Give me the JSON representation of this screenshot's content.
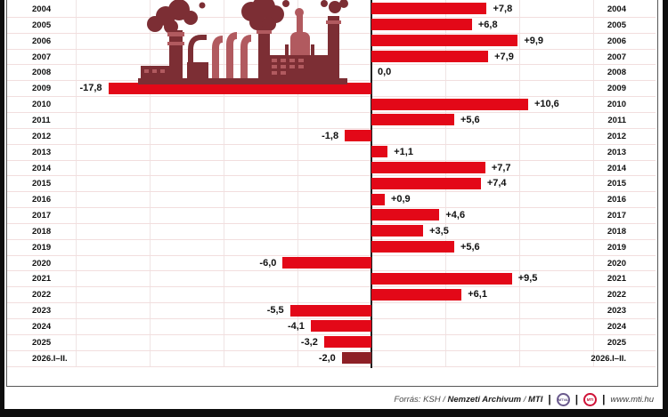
{
  "chart_data": {
    "type": "bar",
    "orientation": "horizontal",
    "title": "",
    "categories": [
      "2004",
      "2005",
      "2006",
      "2007",
      "2008",
      "2009",
      "2010",
      "2011",
      "2012",
      "2013",
      "2014",
      "2015",
      "2016",
      "2017",
      "2018",
      "2019",
      "2020",
      "2021",
      "2022",
      "2023",
      "2024",
      "2025",
      "2026.I–II."
    ],
    "values": [
      7.8,
      6.8,
      9.9,
      7.9,
      0.0,
      -17.8,
      10.6,
      5.6,
      -1.8,
      1.1,
      7.7,
      7.4,
      0.9,
      4.6,
      3.5,
      5.6,
      -6.0,
      9.5,
      6.1,
      -5.5,
      -4.1,
      -3.2,
      -2.0
    ],
    "value_labels": [
      "+7,8",
      "+6,8",
      "+9,9",
      "+7,9",
      "0,0",
      "-17,8",
      "+10,6",
      "+5,6",
      "-1,8",
      "+1,1",
      "+7,7",
      "+7,4",
      "+0,9",
      "+4,6",
      "+3,5",
      "+5,6",
      "-6,0",
      "+9,5",
      "+6,1",
      "-5,5",
      "-4,1",
      "-3,2",
      "-2,0"
    ],
    "xlim": [
      -20,
      15
    ],
    "gridline_step": 5,
    "grid_on": true,
    "bar_color": "#e30818",
    "latest_bar_color": "#8e2026",
    "axis_color": "#1f1f1f"
  },
  "illustration": {
    "name": "factory-silhouette",
    "color_dark": "#7c2e34",
    "color_light": "#b15a5f"
  },
  "footer": {
    "source_prefix": "Forrás:",
    "source_ksh": "KSH",
    "sep": "/",
    "source_archive": "Nemzeti Archivum",
    "source_mti": "MTI",
    "pipe": "|",
    "logo_mtva": "MTVA",
    "logo_mti": "MTI",
    "website": "www.mti.hu"
  }
}
